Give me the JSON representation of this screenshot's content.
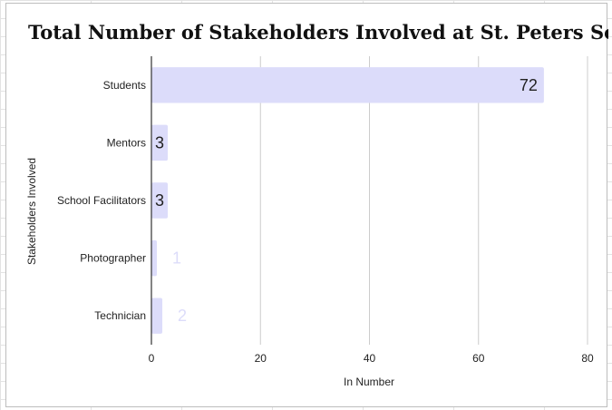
{
  "chart_data": {
    "type": "bar",
    "orientation": "horizontal",
    "title": "Total Number of Stakeholders Involved at St. Peters School",
    "xlabel": "In Number",
    "ylabel": "Stakeholders Involved",
    "categories": [
      "Students",
      "Mentors",
      "School Facilitators",
      "Photographer",
      "Technician"
    ],
    "values": [
      72,
      3,
      3,
      1,
      2
    ],
    "xlim": [
      0,
      80
    ],
    "x_ticks": [
      0,
      20,
      40,
      60,
      80
    ],
    "grid": true,
    "legend": "none",
    "colors": {
      "bar": "#dcdcfa",
      "grid": "#cccccc",
      "axis": "#333333"
    }
  }
}
